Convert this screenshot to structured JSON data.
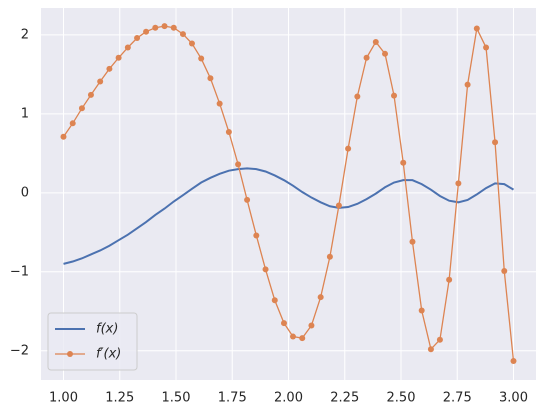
{
  "chart_data": {
    "type": "line",
    "x": [
      1.0,
      1.041,
      1.082,
      1.122,
      1.163,
      1.204,
      1.245,
      1.286,
      1.327,
      1.367,
      1.408,
      1.449,
      1.49,
      1.531,
      1.571,
      1.612,
      1.653,
      1.694,
      1.735,
      1.776,
      1.816,
      1.857,
      1.898,
      1.939,
      1.98,
      2.02,
      2.061,
      2.102,
      2.143,
      2.184,
      2.224,
      2.265,
      2.306,
      2.347,
      2.388,
      2.429,
      2.469,
      2.51,
      2.551,
      2.592,
      2.633,
      2.673,
      2.714,
      2.755,
      2.796,
      2.837,
      2.878,
      2.918,
      2.959,
      3.0
    ],
    "series": [
      {
        "name": "f(x)",
        "color": "#4c72b0",
        "marker": false,
        "values": [
          -0.9,
          -0.87,
          -0.83,
          -0.78,
          -0.73,
          -0.67,
          -0.6,
          -0.53,
          -0.45,
          -0.37,
          -0.28,
          -0.2,
          -0.11,
          -0.03,
          0.05,
          0.13,
          0.19,
          0.24,
          0.28,
          0.3,
          0.31,
          0.3,
          0.27,
          0.22,
          0.16,
          0.09,
          0.01,
          -0.06,
          -0.12,
          -0.17,
          -0.19,
          -0.18,
          -0.14,
          -0.08,
          -0.01,
          0.07,
          0.13,
          0.16,
          0.16,
          0.11,
          0.04,
          -0.04,
          -0.1,
          -0.12,
          -0.09,
          -0.02,
          0.06,
          0.12,
          0.11,
          0.04
        ]
      },
      {
        "name": "f′(x)",
        "color": "#dd8452",
        "marker": true,
        "values": [
          0.71,
          0.88,
          1.07,
          1.24,
          1.41,
          1.57,
          1.71,
          1.84,
          1.96,
          2.04,
          2.09,
          2.11,
          2.09,
          2.01,
          1.89,
          1.7,
          1.45,
          1.13,
          0.77,
          0.36,
          -0.09,
          -0.54,
          -0.97,
          -1.36,
          -1.65,
          -1.82,
          -1.84,
          -1.68,
          -1.32,
          -0.81,
          -0.16,
          0.56,
          1.22,
          1.71,
          1.91,
          1.76,
          1.23,
          0.38,
          -0.62,
          -1.49,
          -1.98,
          -1.86,
          -1.1,
          0.12,
          1.37,
          2.08,
          1.84,
          0.64,
          -0.99,
          -2.13
        ]
      }
    ],
    "xlim": [
      0.9,
      3.1
    ],
    "ylim": [
      -2.37,
      2.34
    ],
    "xticks": [
      {
        "value": 1,
        "label": "1.00"
      },
      {
        "value": 1.25,
        "label": "1.25"
      },
      {
        "value": 1.5,
        "label": "1.50"
      },
      {
        "value": 1.75,
        "label": "1.75"
      },
      {
        "value": 2,
        "label": "2.00"
      },
      {
        "value": 2.25,
        "label": "2.25"
      },
      {
        "value": 2.5,
        "label": "2.50"
      },
      {
        "value": 2.75,
        "label": "2.75"
      },
      {
        "value": 3,
        "label": "3.00"
      }
    ],
    "yticks": [
      {
        "value": -2,
        "label": "−2"
      },
      {
        "value": -1,
        "label": "−1"
      },
      0,
      1,
      2
    ],
    "grid": true,
    "legend": "lower left"
  }
}
